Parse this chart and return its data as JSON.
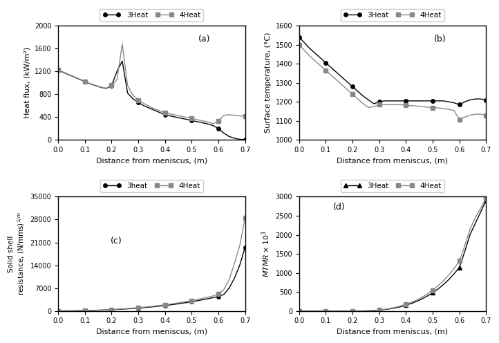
{
  "fig_width": 7.22,
  "fig_height": 4.96,
  "dpi": 100,
  "background_color": "#ffffff",
  "x_common": [
    0.0,
    0.02,
    0.04,
    0.06,
    0.08,
    0.1,
    0.12,
    0.14,
    0.16,
    0.18,
    0.2,
    0.22,
    0.24,
    0.26,
    0.28,
    0.3,
    0.32,
    0.34,
    0.36,
    0.38,
    0.4,
    0.42,
    0.44,
    0.46,
    0.48,
    0.5,
    0.52,
    0.54,
    0.56,
    0.58,
    0.6,
    0.62,
    0.64,
    0.66,
    0.68,
    0.7
  ],
  "heat3_flux": [
    1220,
    1180,
    1140,
    1100,
    1060,
    1020,
    980,
    950,
    920,
    900,
    950,
    1200,
    1380,
    820,
    720,
    660,
    600,
    560,
    520,
    480,
    440,
    420,
    400,
    380,
    360,
    340,
    320,
    300,
    280,
    250,
    200,
    120,
    60,
    30,
    10,
    5
  ],
  "heat4_flux": [
    1230,
    1185,
    1145,
    1105,
    1065,
    1025,
    985,
    955,
    925,
    905,
    960,
    1050,
    1680,
    950,
    780,
    700,
    640,
    590,
    545,
    510,
    475,
    455,
    435,
    415,
    395,
    375,
    355,
    335,
    315,
    285,
    330,
    430,
    440,
    430,
    420,
    415
  ],
  "heat3_temp": [
    1540,
    1510,
    1480,
    1455,
    1430,
    1405,
    1380,
    1355,
    1330,
    1305,
    1280,
    1255,
    1230,
    1210,
    1190,
    1200,
    1205,
    1205,
    1205,
    1205,
    1205,
    1205,
    1205,
    1205,
    1205,
    1205,
    1205,
    1205,
    1200,
    1195,
    1185,
    1200,
    1210,
    1215,
    1215,
    1210
  ],
  "heat4_temp": [
    1500,
    1470,
    1440,
    1415,
    1390,
    1365,
    1340,
    1315,
    1290,
    1265,
    1240,
    1215,
    1190,
    1170,
    1175,
    1185,
    1185,
    1185,
    1185,
    1185,
    1182,
    1180,
    1178,
    1175,
    1172,
    1170,
    1168,
    1165,
    1160,
    1155,
    1105,
    1120,
    1130,
    1135,
    1135,
    1130
  ],
  "heat3_resist": [
    0,
    10,
    25,
    45,
    70,
    100,
    140,
    185,
    240,
    300,
    370,
    450,
    540,
    640,
    750,
    870,
    1000,
    1150,
    1310,
    1480,
    1660,
    1860,
    2080,
    2310,
    2560,
    2830,
    3110,
    3410,
    3730,
    4070,
    4430,
    5000,
    7000,
    10000,
    14000,
    19500
  ],
  "heat4_resist": [
    0,
    12,
    30,
    55,
    85,
    120,
    165,
    215,
    275,
    345,
    425,
    515,
    620,
    730,
    855,
    990,
    1140,
    1305,
    1480,
    1670,
    1875,
    2100,
    2340,
    2600,
    2880,
    3180,
    3500,
    3840,
    4210,
    4600,
    5200,
    6500,
    9500,
    14500,
    20000,
    28500
  ],
  "heat3_mtmr": [
    0,
    0,
    0,
    0,
    0,
    0,
    0,
    0,
    0,
    0,
    0,
    0,
    0,
    5,
    10,
    20,
    35,
    55,
    80,
    110,
    150,
    195,
    250,
    315,
    390,
    475,
    575,
    690,
    820,
    970,
    1140,
    1550,
    2000,
    2300,
    2600,
    2900
  ],
  "heat4_mtmr": [
    0,
    0,
    0,
    0,
    0,
    0,
    0,
    0,
    0,
    0,
    0,
    0,
    0,
    5,
    12,
    25,
    42,
    65,
    95,
    130,
    175,
    225,
    285,
    360,
    445,
    545,
    660,
    790,
    940,
    1110,
    1310,
    1700,
    2150,
    2450,
    2700,
    2950
  ],
  "color_3heat": "#000000",
  "color_4heat": "#888888",
  "marker_3heat": "o",
  "marker_4heat": "s",
  "panel_a_label": "(a)",
  "panel_b_label": "(b)",
  "panel_c_label": "(c)",
  "panel_d_label": "(d)",
  "legend_a": [
    "3Heat",
    "4Heat"
  ],
  "legend_b": [
    "3Heat",
    "4Heat"
  ],
  "legend_c": [
    "3heat",
    "4Heat"
  ],
  "legend_d": [
    "3Heat",
    "4Heat"
  ],
  "xlabel": "Distance from meniscus, (m)",
  "ylabel_a": "Heat flux, (kW/m²)",
  "ylabel_b": "Surface temperature, (°C)",
  "ylabel_c": "Solid shell\nresistance, (N/mms)¹/m",
  "ylabel_d": "MTMR×10³",
  "xlim": [
    0,
    0.7
  ],
  "xticks": [
    0,
    0.1,
    0.2,
    0.3,
    0.4,
    0.5,
    0.6,
    0.7
  ],
  "ylim_a": [
    0,
    2000
  ],
  "yticks_a": [
    0,
    400,
    800,
    1200,
    1600,
    2000
  ],
  "ylim_b": [
    1000,
    1600
  ],
  "yticks_b": [
    1000,
    1100,
    1200,
    1300,
    1400,
    1500,
    1600
  ],
  "ylim_c": [
    0,
    35000
  ],
  "yticks_c": [
    0,
    7000,
    14000,
    21000,
    28000,
    35000
  ],
  "ylim_d": [
    0,
    3000
  ],
  "yticks_d": [
    0,
    500,
    1000,
    1500,
    2000,
    2500,
    3000
  ]
}
